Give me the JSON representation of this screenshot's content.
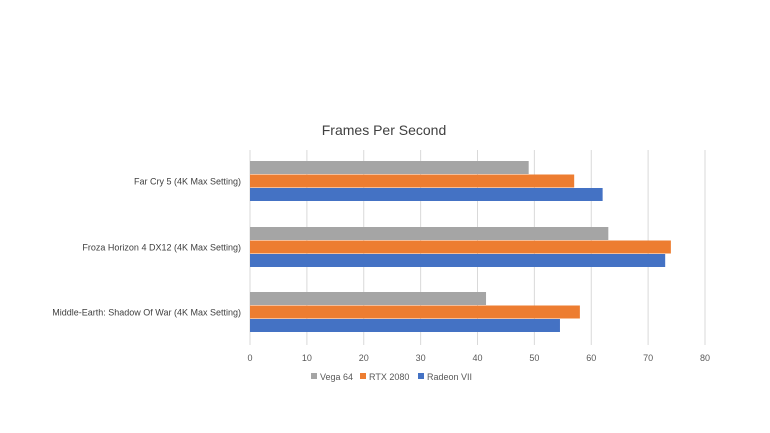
{
  "chart_data": {
    "type": "bar",
    "orientation": "horizontal",
    "title": "Frames Per Second",
    "categories": [
      "Far Cry 5 (4K Max Setting)",
      "Froza Horizon 4 DX12 (4K Max Setting)",
      "Middle-Earth: Shadow Of War (4K Max Setting)"
    ],
    "series": [
      {
        "name": "Vega 64",
        "color": "#a5a5a5",
        "values": [
          49,
          63,
          41.5
        ]
      },
      {
        "name": "RTX 2080",
        "color": "#ed7d31",
        "values": [
          57,
          74,
          58
        ]
      },
      {
        "name": "Radeon VII",
        "color": "#4472c4",
        "values": [
          62,
          73,
          54.5
        ]
      }
    ],
    "xlim": [
      0,
      80
    ],
    "xticks": [
      "0",
      "10",
      "20",
      "30",
      "40",
      "50",
      "60",
      "70",
      "80"
    ],
    "grid": true,
    "legend_position": "bottom"
  }
}
